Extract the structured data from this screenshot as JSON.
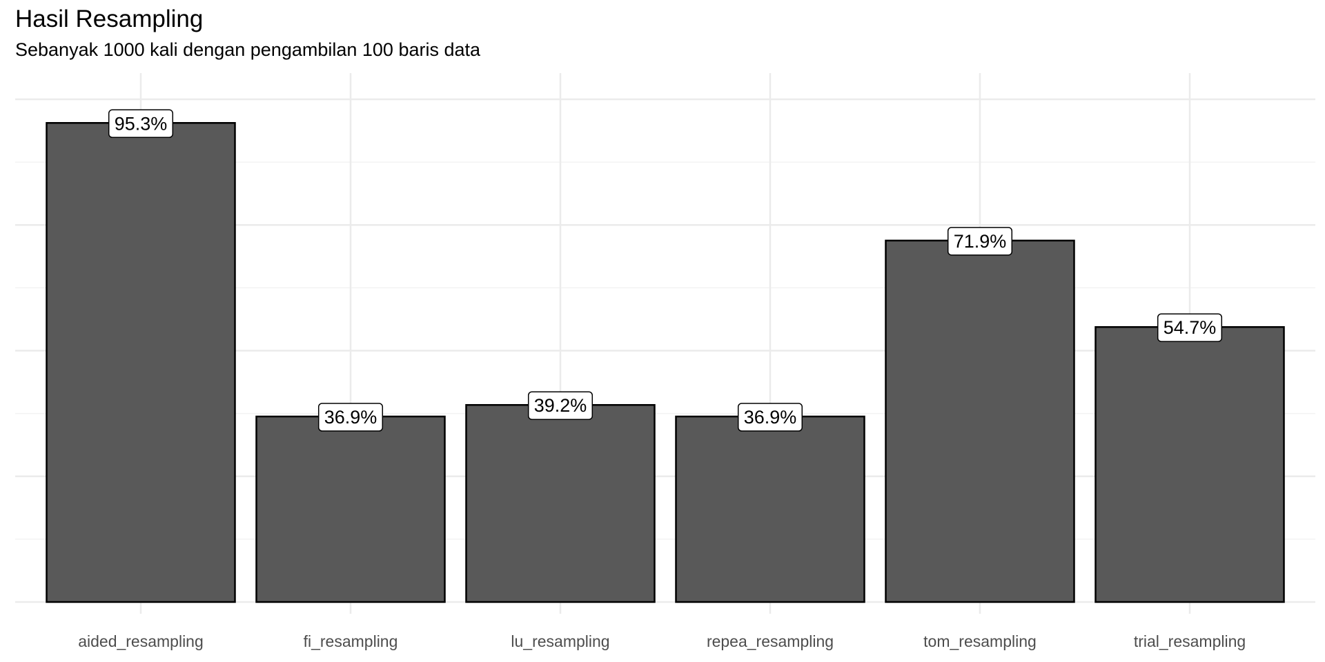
{
  "chart_data": {
    "type": "bar",
    "title": "Hasil Resampling",
    "subtitle": "Sebanyak 1000 kali dengan pengambilan 100 baris data",
    "xlabel": "",
    "ylabel": "",
    "categories": [
      "aided_resampling",
      "fi_resampling",
      "lu_resampling",
      "repea_resampling",
      "tom_resampling",
      "trial_resampling"
    ],
    "values": [
      95.3,
      36.9,
      39.2,
      36.9,
      71.9,
      54.7
    ],
    "data_labels": [
      "95.3%",
      "36.9%",
      "39.2%",
      "36.9%",
      "71.9%",
      "54.7%"
    ],
    "ylim": [
      0,
      100
    ],
    "y_major_breaks": [
      0,
      25,
      50,
      75,
      100
    ],
    "y_minor_breaks": [
      12.5,
      37.5,
      62.5,
      87.5
    ],
    "y_tick_labels_shown": false,
    "grid": true,
    "legend": "none",
    "colors": {
      "bar_fill": "#595959",
      "bar_outline": "#000000",
      "grid_major": "#ebebeb",
      "grid_minor": "#f3f3f3",
      "label_fill": "#ffffff"
    }
  }
}
